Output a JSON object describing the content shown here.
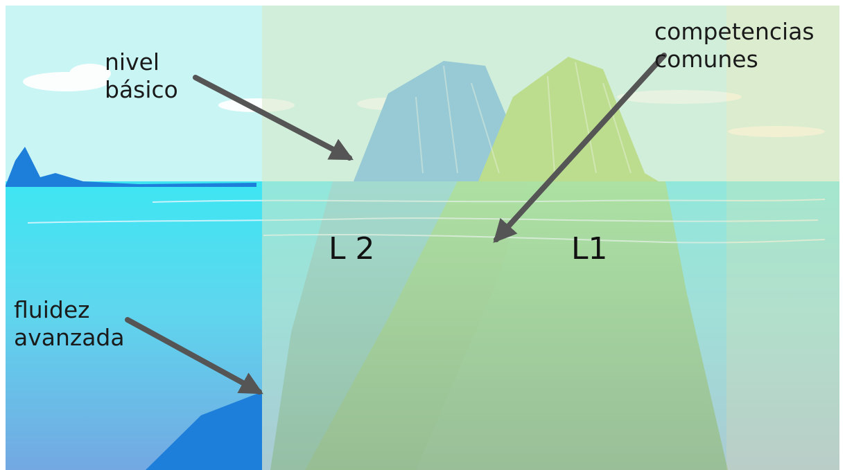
{
  "labels": {
    "nivel_basico": {
      "line1": "nivel",
      "line2": "básico"
    },
    "competencias_comunes": {
      "line1": "competencias",
      "line2": "comunes"
    },
    "fluidez_avanzada": {
      "line1": "fluidez",
      "line2": "avanzada"
    },
    "l2": "L 2",
    "l1": "L1"
  },
  "colors": {
    "sky": "#c9f5f4",
    "sea_surface": "#3ee6f3",
    "sea_deep": "#6fa5e0",
    "berg_blue": "#1e7fdb",
    "berg_green": "#6fcf5f",
    "overlay_left": "#d7e7c6",
    "overlay_right": "#e9e6b6",
    "arrow": "#555555"
  },
  "icons": [
    "arrow-icon"
  ]
}
